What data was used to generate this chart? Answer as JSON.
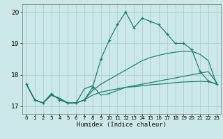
{
  "xlabel": "Humidex (Indice chaleur)",
  "bg_color": "#cce8e8",
  "grid_color": "#aad0d0",
  "line_color": "#1a7a6a",
  "hours": [
    0,
    1,
    2,
    3,
    4,
    5,
    6,
    7,
    8,
    9,
    10,
    11,
    12,
    13,
    14,
    15,
    16,
    17,
    18,
    19,
    20,
    21,
    22,
    23
  ],
  "line1": [
    17.7,
    17.2,
    17.1,
    17.4,
    17.2,
    17.1,
    17.1,
    17.2,
    17.6,
    18.5,
    19.1,
    19.6,
    20.0,
    19.5,
    19.8,
    19.7,
    19.6,
    19.3,
    19.0,
    19.0,
    18.8,
    18.1,
    17.8,
    17.7
  ],
  "line2": [
    17.7,
    17.2,
    17.1,
    17.35,
    17.25,
    17.1,
    17.1,
    17.55,
    17.65,
    17.35,
    17.4,
    17.5,
    17.6,
    17.65,
    17.7,
    17.75,
    17.8,
    17.85,
    17.9,
    17.95,
    18.0,
    18.05,
    18.1,
    17.75
  ],
  "line3": [
    17.7,
    17.2,
    17.1,
    17.35,
    17.25,
    17.1,
    17.1,
    17.2,
    17.35,
    17.45,
    17.5,
    17.55,
    17.6,
    17.62,
    17.65,
    17.68,
    17.7,
    17.72,
    17.75,
    17.77,
    17.78,
    17.79,
    17.78,
    17.7
  ],
  "line4": [
    17.7,
    17.2,
    17.1,
    17.35,
    17.25,
    17.1,
    17.1,
    17.2,
    17.5,
    17.7,
    17.85,
    18.0,
    18.15,
    18.3,
    18.45,
    18.55,
    18.62,
    18.68,
    18.72,
    18.75,
    18.75,
    18.65,
    18.45,
    17.7
  ],
  "ylim": [
    16.75,
    20.25
  ],
  "yticks": [
    17,
    18,
    19,
    20
  ],
  "xticks": [
    0,
    1,
    2,
    3,
    4,
    5,
    6,
    7,
    8,
    9,
    10,
    11,
    12,
    13,
    14,
    15,
    16,
    17,
    18,
    19,
    20,
    21,
    22,
    23
  ]
}
